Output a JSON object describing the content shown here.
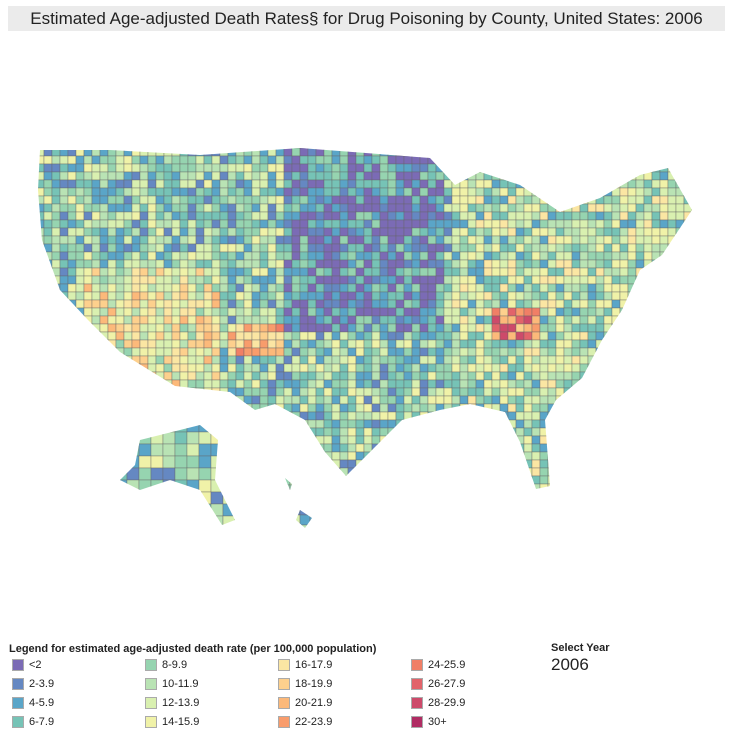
{
  "title": "Estimated Age-adjusted Death Rates§ for Drug Poisoning by County, United States: 2006",
  "legend": {
    "title": "Legend for estimated age-adjusted death rate (per 100,000 population)",
    "items": [
      {
        "label": "<2",
        "color": "#7b6bb5"
      },
      {
        "label": "2-3.9",
        "color": "#6588c2"
      },
      {
        "label": "4-5.9",
        "color": "#5aa5c8"
      },
      {
        "label": "6-7.9",
        "color": "#76c3b6"
      },
      {
        "label": "8-9.9",
        "color": "#96d4b0"
      },
      {
        "label": "10-11.9",
        "color": "#b9e3b4"
      },
      {
        "label": "12-13.9",
        "color": "#d9f0b0"
      },
      {
        "label": "14-15.9",
        "color": "#f0f2a8"
      },
      {
        "label": "16-17.9",
        "color": "#fbe6a3"
      },
      {
        "label": "18-19.9",
        "color": "#fdd08d"
      },
      {
        "label": "20-21.9",
        "color": "#fcb97a"
      },
      {
        "label": "22-23.9",
        "color": "#f89c6c"
      },
      {
        "label": "24-25.9",
        "color": "#f07f66"
      },
      {
        "label": "26-27.9",
        "color": "#e2636a"
      },
      {
        "label": "28-29.9",
        "color": "#cd4a6a"
      },
      {
        "label": "30+",
        "color": "#b02c63"
      }
    ]
  },
  "year_selector": {
    "label": "Select Year",
    "value": "2006"
  }
}
